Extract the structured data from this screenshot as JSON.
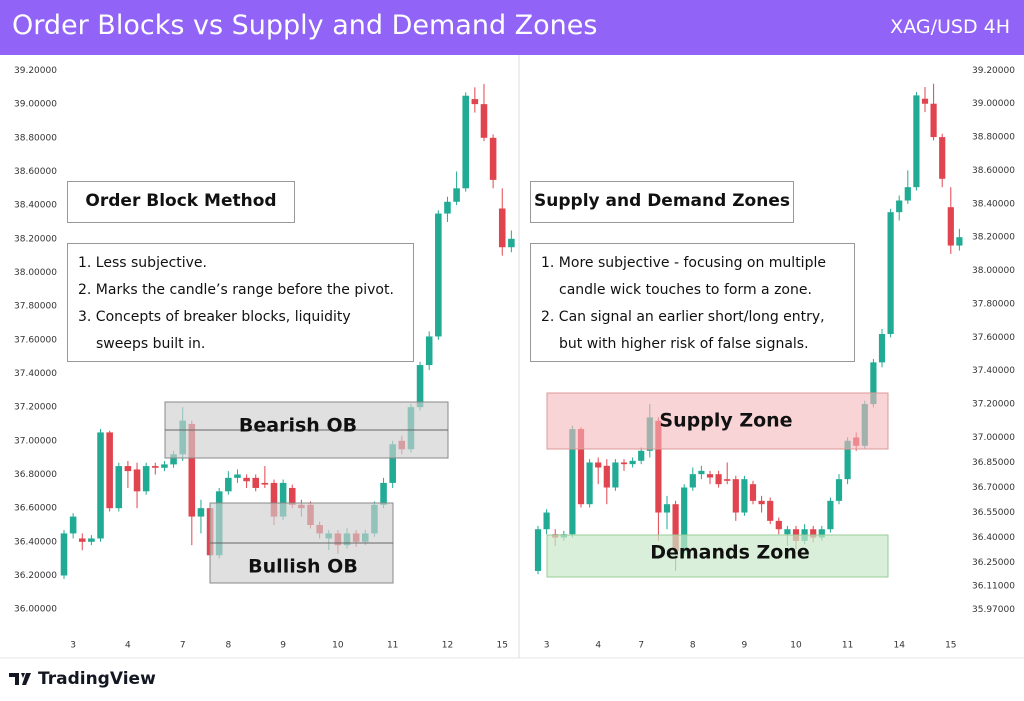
{
  "header": {
    "title": "Order Blocks vs Supply and Demand Zones",
    "subtitle": "XAG/USD 4H"
  },
  "chart_data": [
    {
      "type": "candlestick",
      "up_color": "#22ab94",
      "down_color": "#e0454f",
      "categories": [
        null,
        "3",
        null,
        null,
        null,
        null,
        null,
        "4",
        null,
        null,
        null,
        null,
        null,
        "7",
        null,
        null,
        null,
        null,
        "8",
        null,
        null,
        null,
        null,
        null,
        "9",
        null,
        null,
        null,
        null,
        null,
        "10",
        null,
        null,
        null,
        null,
        null,
        "11",
        null,
        null,
        null,
        null,
        null,
        "12",
        null,
        null,
        null,
        null,
        null,
        "15",
        null
      ],
      "open": [
        36.2,
        36.45,
        36.42,
        36.4,
        36.42,
        37.05,
        36.6,
        36.85,
        36.83,
        36.7,
        36.85,
        36.84,
        36.86,
        36.92,
        37.1,
        36.55,
        36.6,
        36.32,
        36.7,
        36.78,
        36.78,
        36.78,
        36.75,
        36.75,
        36.55,
        36.72,
        36.62,
        36.62,
        36.5,
        36.42,
        36.45,
        36.38,
        36.45,
        36.4,
        36.45,
        36.62,
        36.75,
        37.0,
        36.95,
        37.2,
        37.45,
        37.62,
        38.35,
        38.42,
        38.5,
        39.03,
        39.0,
        38.8,
        38.38,
        38.15
      ],
      "high": [
        36.47,
        36.57,
        36.45,
        36.44,
        37.07,
        37.06,
        36.87,
        36.88,
        36.87,
        36.87,
        36.87,
        36.88,
        36.94,
        37.2,
        37.12,
        36.65,
        36.62,
        36.72,
        36.82,
        36.83,
        36.8,
        36.8,
        36.85,
        36.77,
        36.77,
        36.74,
        36.65,
        36.64,
        36.52,
        36.47,
        36.47,
        36.48,
        36.47,
        36.47,
        36.64,
        36.78,
        37.0,
        37.03,
        37.22,
        37.47,
        37.65,
        38.37,
        38.45,
        38.6,
        39.07,
        39.1,
        39.12,
        38.82,
        38.5,
        38.25
      ],
      "low": [
        36.18,
        36.42,
        36.35,
        36.38,
        36.4,
        36.58,
        36.58,
        36.72,
        36.6,
        36.68,
        36.8,
        36.82,
        36.84,
        36.88,
        36.38,
        36.45,
        36.2,
        36.3,
        36.68,
        36.75,
        36.72,
        36.7,
        36.72,
        36.5,
        36.53,
        36.6,
        36.55,
        36.48,
        36.42,
        36.35,
        36.33,
        36.36,
        36.37,
        36.38,
        36.43,
        36.6,
        36.72,
        36.92,
        36.93,
        37.18,
        37.42,
        37.6,
        38.3,
        38.4,
        38.48,
        38.95,
        38.78,
        38.5,
        38.1,
        38.12
      ],
      "close": [
        36.45,
        36.55,
        36.4,
        36.42,
        37.05,
        36.6,
        36.85,
        36.82,
        36.7,
        36.85,
        36.84,
        36.86,
        36.92,
        37.12,
        36.55,
        36.6,
        36.32,
        36.7,
        36.78,
        36.8,
        36.76,
        36.72,
        36.74,
        36.55,
        36.75,
        36.62,
        36.6,
        36.5,
        36.45,
        36.45,
        36.38,
        36.45,
        36.4,
        36.45,
        36.62,
        36.75,
        36.98,
        36.95,
        37.2,
        37.45,
        37.62,
        38.35,
        38.42,
        38.5,
        39.05,
        39.0,
        38.8,
        38.55,
        38.15,
        38.2
      ],
      "ylim": [
        35.9,
        39.28
      ],
      "yticks": [
        {
          "value": 39.2,
          "label": "39.20000"
        },
        {
          "value": 39.0,
          "label": "39.00000"
        },
        {
          "value": 38.8,
          "label": "38.80000"
        },
        {
          "value": 38.6,
          "label": "38.60000"
        },
        {
          "value": 38.4,
          "label": "38.40000"
        },
        {
          "value": 38.2,
          "label": "38.20000"
        },
        {
          "value": 38.0,
          "label": "38.00000"
        },
        {
          "value": 37.8,
          "label": "37.80000"
        },
        {
          "value": 37.6,
          "label": "37.60000"
        },
        {
          "value": 37.4,
          "label": "37.40000"
        },
        {
          "value": 37.2,
          "label": "37.20000"
        },
        {
          "value": 37.0,
          "label": "37.00000"
        },
        {
          "value": 36.8,
          "label": "36.80000"
        },
        {
          "value": 36.6,
          "label": "36.60000"
        },
        {
          "value": 36.4,
          "label": "36.40000"
        },
        {
          "value": 36.2,
          "label": "36.20000"
        },
        {
          "value": 36.0,
          "label": "36.00000"
        }
      ],
      "box_title": "Order Block Method",
      "points": [
        "1. Less subjective.",
        "2. Marks the candle’s range before the pivot.",
        "3. Concepts of breaker blocks, liquidity sweeps built in."
      ],
      "zones": [
        "Bearish OB",
        "Bullish OB"
      ]
    },
    {
      "type": "candlestick",
      "up_color": "#22ab94",
      "down_color": "#e0454f",
      "categories": [
        null,
        "3",
        null,
        null,
        null,
        null,
        null,
        "4",
        null,
        null,
        null,
        null,
        "7",
        null,
        null,
        null,
        null,
        null,
        "8",
        null,
        null,
        null,
        null,
        null,
        "9",
        null,
        null,
        null,
        null,
        null,
        "10",
        null,
        null,
        null,
        null,
        null,
        "11",
        null,
        null,
        null,
        null,
        null,
        "14",
        null,
        null,
        null,
        null,
        null,
        "15",
        null
      ],
      "open": [
        36.2,
        36.45,
        36.42,
        36.4,
        36.42,
        37.05,
        36.6,
        36.85,
        36.83,
        36.7,
        36.85,
        36.84,
        36.86,
        36.92,
        37.1,
        36.55,
        36.6,
        36.32,
        36.7,
        36.78,
        36.78,
        36.78,
        36.75,
        36.75,
        36.55,
        36.72,
        36.62,
        36.62,
        36.5,
        36.42,
        36.45,
        36.38,
        36.45,
        36.4,
        36.45,
        36.62,
        36.75,
        37.0,
        36.95,
        37.2,
        37.45,
        37.62,
        38.35,
        38.42,
        38.5,
        39.03,
        39.0,
        38.8,
        38.38,
        38.15
      ],
      "high": [
        36.47,
        36.57,
        36.45,
        36.44,
        37.07,
        37.06,
        36.87,
        36.88,
        36.87,
        36.87,
        36.87,
        36.88,
        36.94,
        37.2,
        37.12,
        36.65,
        36.62,
        36.72,
        36.82,
        36.83,
        36.8,
        36.8,
        36.85,
        36.77,
        36.77,
        36.74,
        36.65,
        36.64,
        36.52,
        36.47,
        36.47,
        36.48,
        36.47,
        36.47,
        36.64,
        36.78,
        37.0,
        37.03,
        37.22,
        37.47,
        37.65,
        38.37,
        38.45,
        38.6,
        39.07,
        39.1,
        39.12,
        38.82,
        38.5,
        38.25
      ],
      "low": [
        36.18,
        36.42,
        36.35,
        36.38,
        36.4,
        36.58,
        36.58,
        36.72,
        36.6,
        36.68,
        36.8,
        36.82,
        36.84,
        36.88,
        36.38,
        36.45,
        36.2,
        36.3,
        36.68,
        36.75,
        36.72,
        36.7,
        36.72,
        36.5,
        36.53,
        36.6,
        36.55,
        36.48,
        36.42,
        36.35,
        36.33,
        36.36,
        36.37,
        36.38,
        36.43,
        36.6,
        36.72,
        36.92,
        36.93,
        37.18,
        37.42,
        37.6,
        38.3,
        38.4,
        38.48,
        38.95,
        38.78,
        38.5,
        38.1,
        38.12
      ],
      "close": [
        36.45,
        36.55,
        36.4,
        36.42,
        37.05,
        36.6,
        36.85,
        36.82,
        36.7,
        36.85,
        36.84,
        36.86,
        36.92,
        37.12,
        36.55,
        36.6,
        36.32,
        36.7,
        36.78,
        36.8,
        36.76,
        36.72,
        36.74,
        36.55,
        36.75,
        36.62,
        36.6,
        36.5,
        36.45,
        36.45,
        36.38,
        36.45,
        36.4,
        36.45,
        36.62,
        36.75,
        36.98,
        36.95,
        37.2,
        37.45,
        37.62,
        38.35,
        38.42,
        38.5,
        39.05,
        39.0,
        38.8,
        38.55,
        38.15,
        38.2
      ],
      "ylim": [
        35.87,
        39.28
      ],
      "yticks": [
        {
          "value": 39.2,
          "label": "39.20000"
        },
        {
          "value": 39.0,
          "label": "39.00000"
        },
        {
          "value": 38.8,
          "label": "38.80000"
        },
        {
          "value": 38.6,
          "label": "38.60000"
        },
        {
          "value": 38.4,
          "label": "38.40000"
        },
        {
          "value": 38.2,
          "label": "38.20000"
        },
        {
          "value": 38.0,
          "label": "38.00000"
        },
        {
          "value": 37.8,
          "label": "37.80000"
        },
        {
          "value": 37.6,
          "label": "37.60000"
        },
        {
          "value": 37.4,
          "label": "37.40000"
        },
        {
          "value": 37.2,
          "label": "37.20000"
        },
        {
          "value": 37.0,
          "label": "37.00000"
        },
        {
          "value": 36.85,
          "label": "36.85000"
        },
        {
          "value": 36.7,
          "label": "36.70000"
        },
        {
          "value": 36.55,
          "label": "36.55000"
        },
        {
          "value": 36.4,
          "label": "36.40000"
        },
        {
          "value": 36.25,
          "label": "36.25000"
        },
        {
          "value": 36.11,
          "label": "36.11000"
        },
        {
          "value": 35.97,
          "label": "35.97000"
        }
      ],
      "box_title": "Supply and Demand Zones",
      "points": [
        "1. More subjective - focusing on multiple candle wick touches to form a zone.",
        "2. Can signal an earlier short/long entry, but with higher risk of false signals."
      ],
      "zones": [
        "Supply Zone",
        "Demands Zone"
      ]
    }
  ],
  "footer": {
    "brand": "TradingView"
  }
}
